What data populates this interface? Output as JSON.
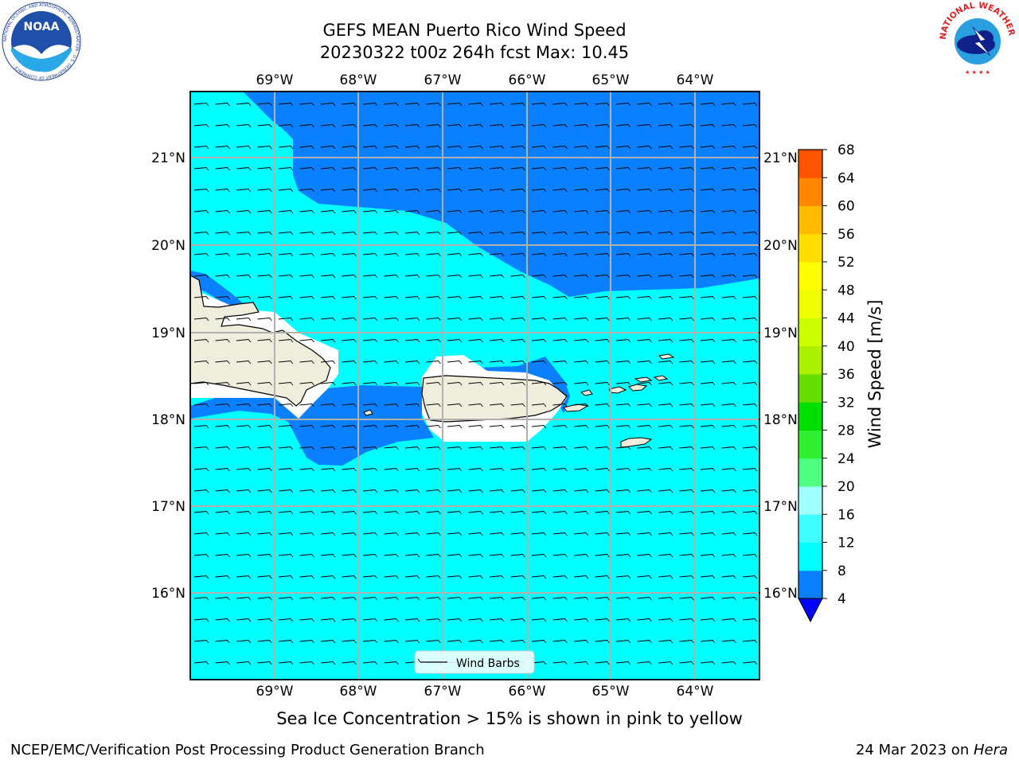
{
  "header": {
    "title_line1": "GEFS MEAN Puerto Rico Wind Speed",
    "title_line2": "20230322 t00z 264h fcst   Max: 10.45"
  },
  "logos": {
    "noaa": {
      "text": "NOAA",
      "ring_text": "NATIONAL OCEANIC AND ATMOSPHERIC ADMINISTRATION · U.S. DEPARTMENT OF COMMERCE ·"
    },
    "nws": {
      "ring_text": "NATIONAL WEATHER SERVICE"
    }
  },
  "map": {
    "lon_labels": [
      "69°W",
      "68°W",
      "67°W",
      "66°W",
      "65°W",
      "64°W"
    ],
    "lat_labels": [
      "21°N",
      "20°N",
      "19°N",
      "18°N",
      "17°N",
      "16°N"
    ],
    "legend_label": "Wind Barbs",
    "colors": {
      "light_cyan": "#00ffff",
      "blue": "#0a80ff",
      "land": "#efeedc",
      "grid": "#b0b0b0"
    }
  },
  "colorbar": {
    "label": "Wind Speed [m/s]",
    "ticks": [
      "4",
      "8",
      "12",
      "16",
      "20",
      "24",
      "28",
      "32",
      "36",
      "40",
      "44",
      "48",
      "52",
      "56",
      "60",
      "64",
      "68"
    ],
    "colors": [
      "#0a80ff",
      "#00ffff",
      "#40ffff",
      "#a0ffff",
      "#50ff80",
      "#30ee30",
      "#00dd00",
      "#66dd00",
      "#aaee00",
      "#ccff00",
      "#eeff00",
      "#ffff00",
      "#ffdd00",
      "#ffbb00",
      "#ff8800",
      "#ff5500",
      "#ff2200",
      "#ff0000"
    ],
    "underflow_color": "#0000ff"
  },
  "note": "Sea Ice Concentration > 15% is shown in pink to yellow",
  "footer": {
    "left": "NCEP/EMC/Verification Post Processing Product Generation Branch",
    "date": "24 Mar 2023 on ",
    "machine": "Hera"
  }
}
